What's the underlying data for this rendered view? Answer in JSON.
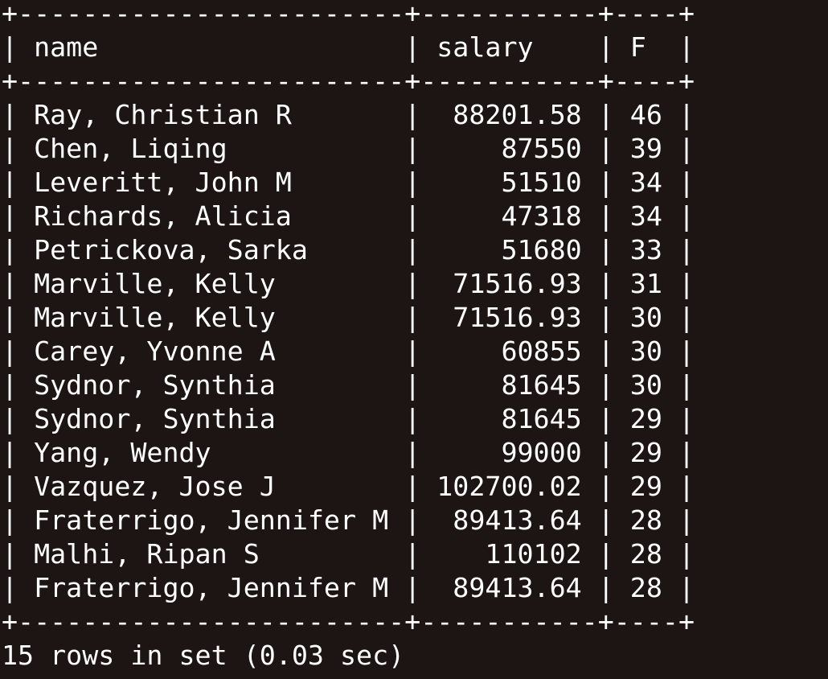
{
  "terminal": {
    "columns": [
      "name",
      "salary",
      "F"
    ],
    "rows": [
      [
        "Ray, Christian R",
        "88201.58",
        "46"
      ],
      [
        "Chen, Liqing",
        "87550",
        "39"
      ],
      [
        "Leveritt, John M",
        "51510",
        "34"
      ],
      [
        "Richards, Alicia",
        "47318",
        "34"
      ],
      [
        "Petrickova, Sarka",
        "51680",
        "33"
      ],
      [
        "Marville, Kelly",
        "71516.93",
        "31"
      ],
      [
        "Marville, Kelly",
        "71516.93",
        "30"
      ],
      [
        "Carey, Yvonne A",
        "60855",
        "30"
      ],
      [
        "Sydnor, Synthia",
        "81645",
        "30"
      ],
      [
        "Sydnor, Synthia",
        "81645",
        "29"
      ],
      [
        "Yang, Wendy",
        "99000",
        "29"
      ],
      [
        "Vazquez, Jose J",
        "102700.02",
        "29"
      ],
      [
        "Fraterrigo, Jennifer M",
        "89413.64",
        "28"
      ],
      [
        "Malhi, Ripan S",
        "110102",
        "28"
      ],
      [
        "Fraterrigo, Jennifer M",
        "89413.64",
        "28"
      ]
    ],
    "footer": "15 rows in set (0.03 sec)",
    "colors": {
      "background": "#1d1414",
      "text": "#ffffff"
    }
  }
}
